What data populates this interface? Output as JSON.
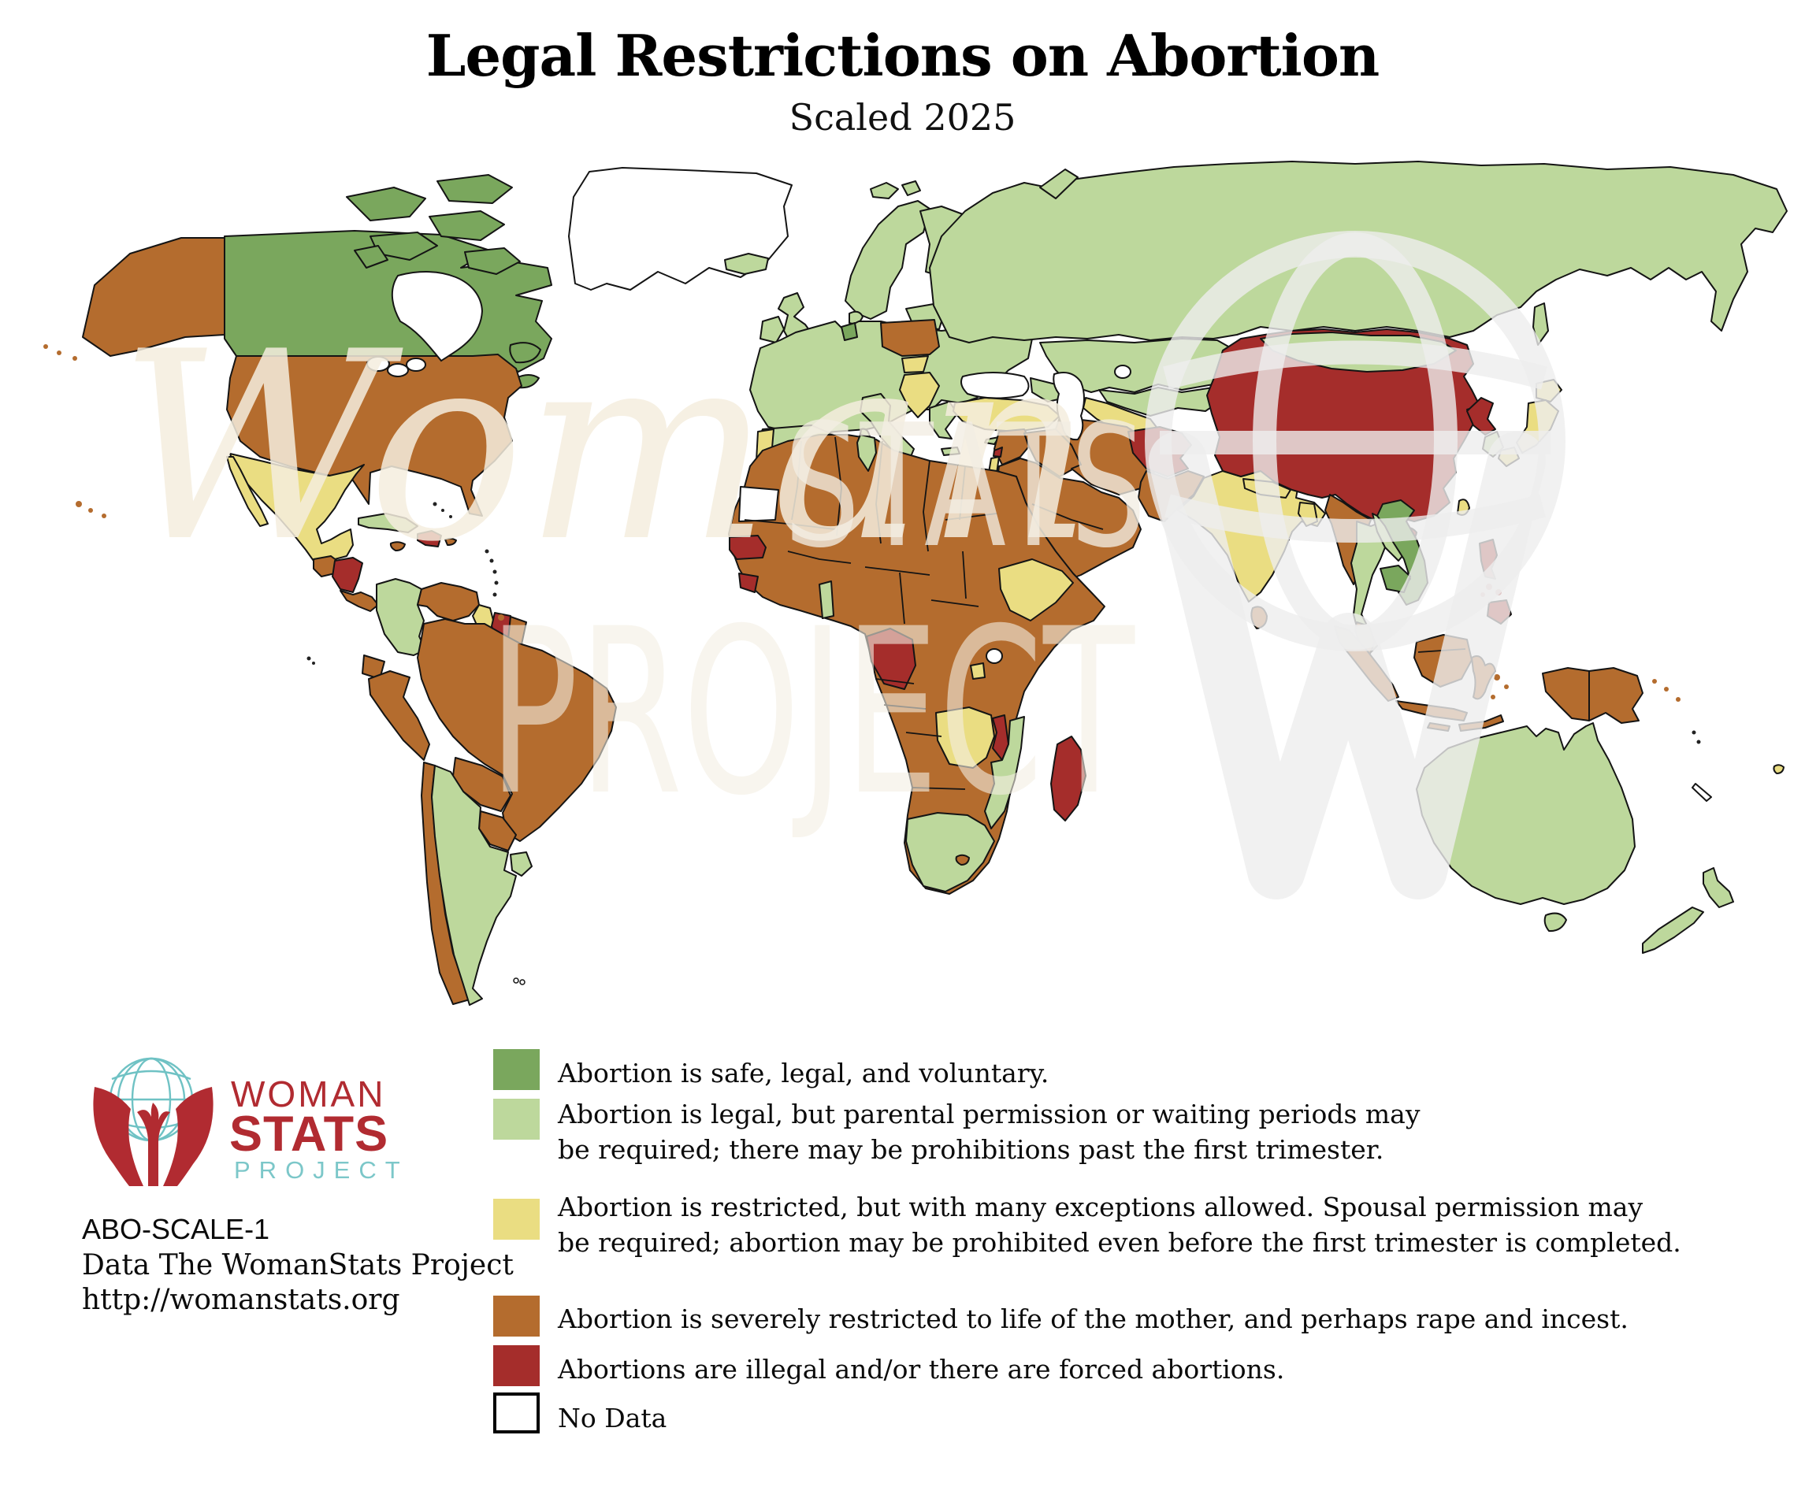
{
  "title": "Legal Restrictions on Abortion",
  "subtitle": "Scaled 2025",
  "legend": {
    "items": [
      {
        "category": "safe",
        "color": "#7aa75d",
        "line1": "Abortion is safe, legal, and voluntary.",
        "line2": ""
      },
      {
        "category": "legal",
        "color": "#bdd89c",
        "line1": "Abortion is legal, but parental permission or waiting periods may",
        "line2": "be required; there may be prohibitions past the first trimester."
      },
      {
        "category": "restricted",
        "color": "#eadd82",
        "line1": "Abortion is restricted, but with many exceptions allowed. Spousal permission may",
        "line2": "be required; abortion may be prohibited even before the first trimester is completed."
      },
      {
        "category": "severe",
        "color": "#b46c2e",
        "line1": "Abortion is severely restricted to life of the mother, and perhaps rape and incest.",
        "line2": ""
      },
      {
        "category": "illegal",
        "color": "#a52d2b",
        "line1": "Abortions are illegal and/or there are forced abortions.",
        "line2": ""
      },
      {
        "category": "nodata",
        "color": "#ffffff",
        "line1": "No Data",
        "line2": ""
      }
    ]
  },
  "attribution": {
    "scale_id": "ABO-SCALE-1",
    "source": "Data The WomanStats Project",
    "url": "http://womanstats.org"
  },
  "logo": {
    "woman": "WOMAN",
    "stats": "STATS",
    "project": "PROJECT",
    "red": "#b12b31",
    "teal": "#6fc2c4"
  },
  "watermark": {
    "script": "Woman",
    "stats": "STATS",
    "project": "PROJECT"
  },
  "colors": {
    "categories": {
      "safe": "#7aa75d",
      "legal": "#bdd89c",
      "restricted": "#eadd82",
      "severe": "#b46c2e",
      "illegal": "#a52d2b",
      "nodata": "#ffffff"
    },
    "outline": "#141414",
    "ocean": "#ffffff"
  },
  "map": {
    "countries": [
      {
        "name": "canada",
        "category": "safe"
      },
      {
        "name": "arctic_islands_1",
        "category": "safe"
      },
      {
        "name": "arctic_islands_2",
        "category": "safe"
      },
      {
        "name": "arctic_islands_3",
        "category": "safe"
      },
      {
        "name": "arctic_islands_4",
        "category": "safe"
      },
      {
        "name": "arctic_islands_5",
        "category": "safe"
      },
      {
        "name": "arctic_islands_6",
        "category": "safe"
      },
      {
        "name": "newfoundland",
        "category": "safe"
      },
      {
        "name": "nova_scotia",
        "category": "safe"
      },
      {
        "name": "alaska",
        "category": "severe"
      },
      {
        "name": "usa",
        "category": "severe"
      },
      {
        "name": "greenland",
        "category": "nodata"
      },
      {
        "name": "mexico",
        "category": "restricted"
      },
      {
        "name": "baja_california",
        "category": "restricted"
      },
      {
        "name": "guatemala_belize",
        "category": "severe"
      },
      {
        "name": "honduras_nicaragua",
        "category": "illegal"
      },
      {
        "name": "costa_rica_panama",
        "category": "severe"
      },
      {
        "name": "cuba",
        "category": "legal"
      },
      {
        "name": "hispaniola",
        "category": "illegal"
      },
      {
        "name": "jamaica",
        "category": "severe"
      },
      {
        "name": "puerto_rico",
        "category": "severe"
      },
      {
        "name": "colombia",
        "category": "legal"
      },
      {
        "name": "venezuela",
        "category": "severe"
      },
      {
        "name": "guyana",
        "category": "restricted"
      },
      {
        "name": "suriname",
        "category": "illegal"
      },
      {
        "name": "french_guiana",
        "category": "severe"
      },
      {
        "name": "ecuador",
        "category": "severe"
      },
      {
        "name": "peru",
        "category": "severe"
      },
      {
        "name": "brazil",
        "category": "severe"
      },
      {
        "name": "bolivia",
        "category": "severe"
      },
      {
        "name": "paraguay",
        "category": "severe"
      },
      {
        "name": "chile",
        "category": "severe"
      },
      {
        "name": "argentina",
        "category": "legal"
      },
      {
        "name": "uruguay",
        "category": "legal"
      },
      {
        "name": "iceland",
        "category": "legal"
      },
      {
        "name": "svalbard_1",
        "category": "legal"
      },
      {
        "name": "svalbard_2",
        "category": "legal"
      },
      {
        "name": "uk",
        "category": "legal"
      },
      {
        "name": "ireland",
        "category": "legal"
      },
      {
        "name": "norway_sweden",
        "category": "legal"
      },
      {
        "name": "finland",
        "category": "legal"
      },
      {
        "name": "denmark",
        "category": "legal"
      },
      {
        "name": "baltics",
        "category": "legal"
      },
      {
        "name": "europe_main",
        "category": "legal"
      },
      {
        "name": "spain",
        "category": "legal"
      },
      {
        "name": "portugal",
        "category": "restricted"
      },
      {
        "name": "italy",
        "category": "legal"
      },
      {
        "name": "sicily",
        "category": "legal"
      },
      {
        "name": "sardinia",
        "category": "legal"
      },
      {
        "name": "netherlands",
        "category": "safe"
      },
      {
        "name": "poland",
        "category": "severe"
      },
      {
        "name": "hungary",
        "category": "restricted"
      },
      {
        "name": "balkans",
        "category": "restricted"
      },
      {
        "name": "greece",
        "category": "legal"
      },
      {
        "name": "crete",
        "category": "legal"
      },
      {
        "name": "russia",
        "category": "legal"
      },
      {
        "name": "novaya_zemlya",
        "category": "legal"
      },
      {
        "name": "sakhalin",
        "category": "legal"
      },
      {
        "name": "kazakhstan",
        "category": "legal"
      },
      {
        "name": "uzbek_group",
        "category": "legal"
      },
      {
        "name": "turkmenistan",
        "category": "restricted"
      },
      {
        "name": "caucasus",
        "category": "legal"
      },
      {
        "name": "turkey",
        "category": "restricted"
      },
      {
        "name": "cyprus",
        "category": "legal"
      },
      {
        "name": "syria_jordan",
        "category": "severe"
      },
      {
        "name": "lebanon",
        "category": "illegal"
      },
      {
        "name": "israel",
        "category": "restricted"
      },
      {
        "name": "iraq",
        "category": "severe"
      },
      {
        "name": "iran",
        "category": "severe"
      },
      {
        "name": "arabia",
        "category": "severe"
      },
      {
        "name": "afghanistan",
        "category": "illegal"
      },
      {
        "name": "pakistan",
        "category": "severe"
      },
      {
        "name": "india",
        "category": "restricted"
      },
      {
        "name": "nepal",
        "category": "restricted"
      },
      {
        "name": "bangladesh",
        "category": "restricted"
      },
      {
        "name": "sri_lanka",
        "category": "severe"
      },
      {
        "name": "china",
        "category": "illegal"
      },
      {
        "name": "hainan",
        "category": "illegal"
      },
      {
        "name": "mongolia",
        "category": "legal"
      },
      {
        "name": "north_korea",
        "category": "illegal"
      },
      {
        "name": "south_korea",
        "category": "legal"
      },
      {
        "name": "japan_hokkaido",
        "category": "restricted"
      },
      {
        "name": "japan_honshu",
        "category": "restricted"
      },
      {
        "name": "japan_kyushu",
        "category": "restricted"
      },
      {
        "name": "taiwan",
        "category": "restricted"
      },
      {
        "name": "myanmar",
        "category": "severe"
      },
      {
        "name": "thailand",
        "category": "legal"
      },
      {
        "name": "laos",
        "category": "legal"
      },
      {
        "name": "vietnam",
        "category": "safe"
      },
      {
        "name": "cambodia",
        "category": "safe"
      },
      {
        "name": "malaysia_peninsula",
        "category": "severe"
      },
      {
        "name": "borneo",
        "category": "severe"
      },
      {
        "name": "sumatra",
        "category": "severe"
      },
      {
        "name": "java",
        "category": "severe"
      },
      {
        "name": "sulawesi",
        "category": "severe"
      },
      {
        "name": "lesser_sunda",
        "category": "severe"
      },
      {
        "name": "timor",
        "category": "severe"
      },
      {
        "name": "west_papua",
        "category": "severe"
      },
      {
        "name": "papua_new_guinea",
        "category": "severe"
      },
      {
        "name": "philippines_luzon",
        "category": "illegal"
      },
      {
        "name": "philippines_mindanao",
        "category": "illegal"
      },
      {
        "name": "fiji",
        "category": "restricted"
      },
      {
        "name": "new_caledonia",
        "category": "nodata"
      },
      {
        "name": "africa_main",
        "category": "severe"
      },
      {
        "name": "tunisia",
        "category": "legal"
      },
      {
        "name": "western_sahara",
        "category": "nodata"
      },
      {
        "name": "senegal",
        "category": "illegal"
      },
      {
        "name": "sierra_leone",
        "category": "illegal"
      },
      {
        "name": "benin",
        "category": "legal"
      },
      {
        "name": "ethiopia",
        "category": "restricted"
      },
      {
        "name": "gabon_congo",
        "category": "illegal"
      },
      {
        "name": "rwanda_burundi",
        "category": "restricted"
      },
      {
        "name": "zambia",
        "category": "restricted"
      },
      {
        "name": "malawi",
        "category": "illegal"
      },
      {
        "name": "mozambique",
        "category": "legal"
      },
      {
        "name": "south_africa",
        "category": "legal"
      },
      {
        "name": "lesotho",
        "category": "severe"
      },
      {
        "name": "madagascar",
        "category": "illegal"
      },
      {
        "name": "australia",
        "category": "legal"
      },
      {
        "name": "tasmania",
        "category": "legal"
      },
      {
        "name": "nz_north",
        "category": "legal"
      },
      {
        "name": "nz_south",
        "category": "legal"
      }
    ]
  }
}
